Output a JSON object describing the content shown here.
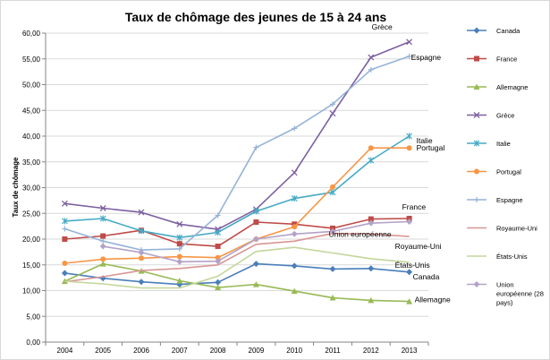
{
  "chart_data": {
    "type": "line",
    "title": "Taux de chômage des jeunes de 15 à 24 ans",
    "ylabel": "Taux de chômage",
    "xlabel": "",
    "x": [
      "2004",
      "2005",
      "2006",
      "2007",
      "2008",
      "2009",
      "2010",
      "2011",
      "2012",
      "2013"
    ],
    "ylim": [
      0,
      60
    ],
    "y_ticks": [
      "0,00",
      "5,00",
      "10,00",
      "15,00",
      "20,00",
      "25,00",
      "30,00",
      "35,00",
      "40,00",
      "45,00",
      "50,00",
      "55,00",
      "60,00"
    ],
    "grid": "horizontal",
    "legend_position": "right",
    "series": [
      {
        "name": "Canada",
        "legend_label": "Canada",
        "inline_label": "Canada",
        "color": "#4a7ebb",
        "marker": "diamond",
        "values": [
          13.4,
          12.4,
          11.7,
          11.2,
          11.6,
          15.2,
          14.8,
          14.2,
          14.3,
          13.6
        ]
      },
      {
        "name": "France",
        "legend_label": "France",
        "inline_label": "France",
        "color": "#be4b48",
        "marker": "square",
        "values": [
          20.0,
          20.6,
          21.7,
          19.1,
          18.6,
          23.3,
          22.9,
          22.1,
          23.9,
          24.0
        ]
      },
      {
        "name": "Allemagne",
        "legend_label": "Allemagne",
        "inline_label": "Allemagne",
        "color": "#98b954",
        "marker": "triangle",
        "values": [
          11.8,
          15.2,
          13.8,
          11.9,
          10.6,
          11.2,
          9.9,
          8.6,
          8.1,
          7.9
        ]
      },
      {
        "name": "Grèce",
        "legend_label": "Grèce",
        "inline_label": "Grèce",
        "color": "#7d60a0",
        "marker": "x",
        "values": [
          26.9,
          26.0,
          25.2,
          22.9,
          21.9,
          25.8,
          32.9,
          44.4,
          55.3,
          58.3
        ]
      },
      {
        "name": "Italie",
        "legend_label": "Italie",
        "inline_label": "Italie",
        "color": "#46aac5",
        "marker": "star",
        "values": [
          23.5,
          24.0,
          21.6,
          20.3,
          21.3,
          25.4,
          27.9,
          29.1,
          35.3,
          40.0
        ]
      },
      {
        "name": "Portugal",
        "legend_label": "Portugal",
        "inline_label": "Portugal",
        "color": "#f79646",
        "marker": "circle",
        "values": [
          15.3,
          16.1,
          16.3,
          16.6,
          16.4,
          20.0,
          22.4,
          30.1,
          37.7,
          37.7
        ]
      },
      {
        "name": "Espagne",
        "legend_label": "Espagne",
        "inline_label": "Espagne",
        "color": "#95b3d7",
        "marker": "plus",
        "values": [
          22.0,
          19.6,
          17.9,
          18.1,
          24.6,
          37.8,
          41.5,
          46.2,
          52.9,
          55.5
        ]
      },
      {
        "name": "Royaume-Uni",
        "legend_label": "Royaume-Uni",
        "inline_label": "Royaume-Uni",
        "color": "#d99694",
        "marker": "none",
        "values": [
          11.7,
          12.7,
          13.9,
          14.3,
          15.0,
          19.0,
          19.6,
          21.1,
          21.0,
          20.5
        ]
      },
      {
        "name": "États-Unis",
        "legend_label": "États-Unis",
        "inline_label": "États-Unis",
        "color": "#c3d69b",
        "marker": "none",
        "values": [
          11.8,
          11.3,
          10.5,
          10.5,
          12.8,
          17.6,
          18.4,
          17.3,
          16.2,
          15.5
        ]
      },
      {
        "name": "Union européenne (28 pays)",
        "legend_label": "Union européenne (28 pays)",
        "inline_label": "Union européenne",
        "color": "#b3a2c7",
        "marker": "diamond",
        "values": [
          null,
          18.6,
          17.4,
          15.6,
          15.7,
          20.0,
          21.0,
          21.5,
          23.1,
          23.4
        ]
      }
    ]
  }
}
